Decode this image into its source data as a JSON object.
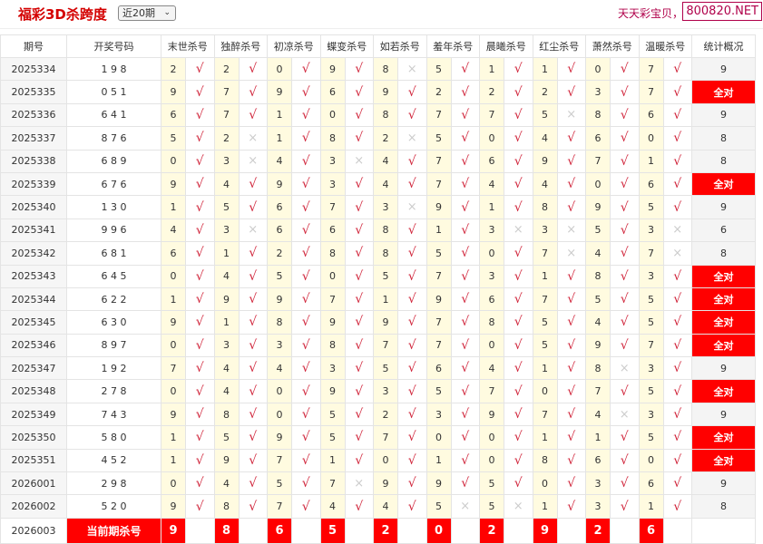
{
  "header": {
    "title": "福彩3D杀跨度",
    "period_select": "近20期",
    "slogan": "天天彩宝贝，天",
    "brand": "800820.NET"
  },
  "colors": {
    "accent": "#ff0000",
    "check": "#d0243a",
    "value_bg": "#fffbe0"
  },
  "columns": [
    "期号",
    "开奖号码",
    "末世杀号",
    "独醉杀号",
    "初凉杀号",
    "蝶变杀号",
    "如若杀号",
    "羞年杀号",
    "晨曦杀号",
    "红尘杀号",
    "萧然杀号",
    "温暖杀号",
    "统计概况"
  ],
  "rows": [
    {
      "id": "2025334",
      "draw": "1 9 8",
      "kills": [
        "2",
        "2",
        "0",
        "9",
        "8",
        "5",
        "1",
        "1",
        "0",
        "7"
      ],
      "marks": [
        "√",
        "√",
        "√",
        "√",
        "×",
        "√",
        "√",
        "√",
        "√",
        "√"
      ],
      "stat": "9"
    },
    {
      "id": "2025335",
      "draw": "0 5 1",
      "kills": [
        "9",
        "7",
        "9",
        "6",
        "9",
        "2",
        "2",
        "2",
        "3",
        "7"
      ],
      "marks": [
        "√",
        "√",
        "√",
        "√",
        "√",
        "√",
        "√",
        "√",
        "√",
        "√"
      ],
      "stat": "全对"
    },
    {
      "id": "2025336",
      "draw": "6 4 1",
      "kills": [
        "6",
        "7",
        "1",
        "0",
        "8",
        "7",
        "7",
        "5",
        "8",
        "6"
      ],
      "marks": [
        "√",
        "√",
        "√",
        "√",
        "√",
        "√",
        "√",
        "×",
        "√",
        "√"
      ],
      "stat": "9"
    },
    {
      "id": "2025337",
      "draw": "8 7 6",
      "kills": [
        "5",
        "2",
        "1",
        "8",
        "2",
        "5",
        "0",
        "4",
        "6",
        "0"
      ],
      "marks": [
        "√",
        "×",
        "√",
        "√",
        "×",
        "√",
        "√",
        "√",
        "√",
        "√"
      ],
      "stat": "8"
    },
    {
      "id": "2025338",
      "draw": "6 8 9",
      "kills": [
        "0",
        "3",
        "4",
        "3",
        "4",
        "7",
        "6",
        "9",
        "7",
        "1"
      ],
      "marks": [
        "√",
        "×",
        "√",
        "×",
        "√",
        "√",
        "√",
        "√",
        "√",
        "√"
      ],
      "stat": "8"
    },
    {
      "id": "2025339",
      "draw": "6 7 6",
      "kills": [
        "9",
        "4",
        "9",
        "3",
        "4",
        "7",
        "4",
        "4",
        "0",
        "6"
      ],
      "marks": [
        "√",
        "√",
        "√",
        "√",
        "√",
        "√",
        "√",
        "√",
        "√",
        "√"
      ],
      "stat": "全对"
    },
    {
      "id": "2025340",
      "draw": "1 3 0",
      "kills": [
        "1",
        "5",
        "6",
        "7",
        "3",
        "9",
        "1",
        "8",
        "9",
        "5"
      ],
      "marks": [
        "√",
        "√",
        "√",
        "√",
        "×",
        "√",
        "√",
        "√",
        "√",
        "√"
      ],
      "stat": "9"
    },
    {
      "id": "2025341",
      "draw": "9 9 6",
      "kills": [
        "4",
        "3",
        "6",
        "6",
        "8",
        "1",
        "3",
        "3",
        "5",
        "3"
      ],
      "marks": [
        "√",
        "×",
        "√",
        "√",
        "√",
        "√",
        "×",
        "×",
        "√",
        "×"
      ],
      "stat": "6"
    },
    {
      "id": "2025342",
      "draw": "6 8 1",
      "kills": [
        "6",
        "1",
        "2",
        "8",
        "8",
        "5",
        "0",
        "7",
        "4",
        "7"
      ],
      "marks": [
        "√",
        "√",
        "√",
        "√",
        "√",
        "√",
        "√",
        "×",
        "√",
        "×"
      ],
      "stat": "8"
    },
    {
      "id": "2025343",
      "draw": "6 4 5",
      "kills": [
        "0",
        "4",
        "5",
        "0",
        "5",
        "7",
        "3",
        "1",
        "8",
        "3"
      ],
      "marks": [
        "√",
        "√",
        "√",
        "√",
        "√",
        "√",
        "√",
        "√",
        "√",
        "√"
      ],
      "stat": "全对"
    },
    {
      "id": "2025344",
      "draw": "6 2 2",
      "kills": [
        "1",
        "9",
        "9",
        "7",
        "1",
        "9",
        "6",
        "7",
        "5",
        "5"
      ],
      "marks": [
        "√",
        "√",
        "√",
        "√",
        "√",
        "√",
        "√",
        "√",
        "√",
        "√"
      ],
      "stat": "全对"
    },
    {
      "id": "2025345",
      "draw": "6 3 0",
      "kills": [
        "9",
        "1",
        "8",
        "9",
        "9",
        "7",
        "8",
        "5",
        "4",
        "5"
      ],
      "marks": [
        "√",
        "√",
        "√",
        "√",
        "√",
        "√",
        "√",
        "√",
        "√",
        "√"
      ],
      "stat": "全对"
    },
    {
      "id": "2025346",
      "draw": "8 9 7",
      "kills": [
        "0",
        "3",
        "3",
        "8",
        "7",
        "7",
        "0",
        "5",
        "9",
        "7"
      ],
      "marks": [
        "√",
        "√",
        "√",
        "√",
        "√",
        "√",
        "√",
        "√",
        "√",
        "√"
      ],
      "stat": "全对"
    },
    {
      "id": "2025347",
      "draw": "1 9 2",
      "kills": [
        "7",
        "4",
        "4",
        "3",
        "5",
        "6",
        "4",
        "1",
        "8",
        "3"
      ],
      "marks": [
        "√",
        "√",
        "√",
        "√",
        "√",
        "√",
        "√",
        "√",
        "×",
        "√"
      ],
      "stat": "9"
    },
    {
      "id": "2025348",
      "draw": "2 7 8",
      "kills": [
        "0",
        "4",
        "0",
        "9",
        "3",
        "5",
        "7",
        "0",
        "7",
        "5"
      ],
      "marks": [
        "√",
        "√",
        "√",
        "√",
        "√",
        "√",
        "√",
        "√",
        "√",
        "√"
      ],
      "stat": "全对"
    },
    {
      "id": "2025349",
      "draw": "7 4 3",
      "kills": [
        "9",
        "8",
        "0",
        "5",
        "2",
        "3",
        "9",
        "7",
        "4",
        "3"
      ],
      "marks": [
        "√",
        "√",
        "√",
        "√",
        "√",
        "√",
        "√",
        "√",
        "×",
        "√"
      ],
      "stat": "9"
    },
    {
      "id": "2025350",
      "draw": "5 8 0",
      "kills": [
        "1",
        "5",
        "9",
        "5",
        "7",
        "0",
        "0",
        "1",
        "1",
        "5"
      ],
      "marks": [
        "√",
        "√",
        "√",
        "√",
        "√",
        "√",
        "√",
        "√",
        "√",
        "√"
      ],
      "stat": "全对"
    },
    {
      "id": "2025351",
      "draw": "4 5 2",
      "kills": [
        "1",
        "9",
        "7",
        "1",
        "0",
        "1",
        "0",
        "8",
        "6",
        "0"
      ],
      "marks": [
        "√",
        "√",
        "√",
        "√",
        "√",
        "√",
        "√",
        "√",
        "√",
        "√"
      ],
      "stat": "全对"
    },
    {
      "id": "2026001",
      "draw": "2 9 8",
      "kills": [
        "0",
        "4",
        "5",
        "7",
        "9",
        "9",
        "5",
        "0",
        "3",
        "6"
      ],
      "marks": [
        "√",
        "√",
        "√",
        "×",
        "√",
        "√",
        "√",
        "√",
        "√",
        "√"
      ],
      "stat": "9"
    },
    {
      "id": "2026002",
      "draw": "5 2 0",
      "kills": [
        "9",
        "8",
        "7",
        "4",
        "4",
        "5",
        "5",
        "1",
        "3",
        "1"
      ],
      "marks": [
        "√",
        "√",
        "√",
        "√",
        "√",
        "×",
        "×",
        "√",
        "√",
        "√"
      ],
      "stat": "8"
    }
  ],
  "current": {
    "id": "2026003",
    "label": "当前期杀号",
    "kills": [
      "9",
      "8",
      "6",
      "5",
      "2",
      "0",
      "2",
      "9",
      "2",
      "6"
    ]
  }
}
